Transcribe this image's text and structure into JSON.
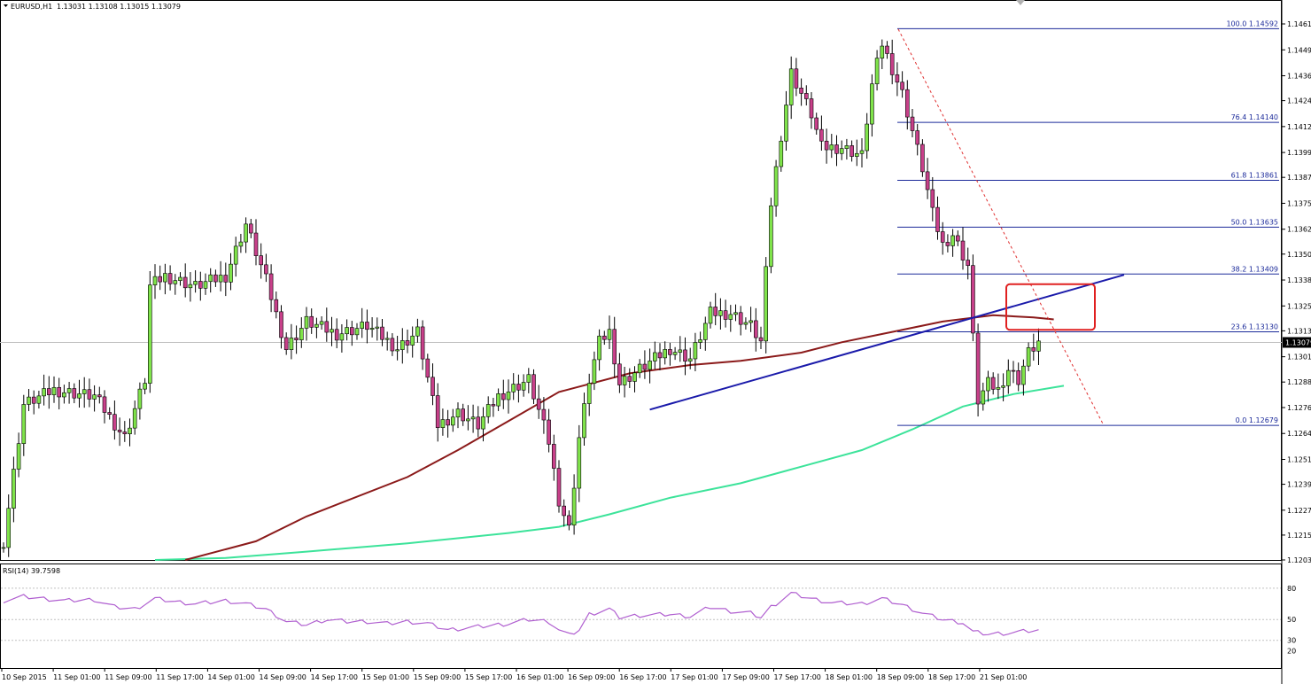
{
  "header": {
    "symbol": "EURUSD,H1",
    "ohlc": "1.13031 1.13108 1.13015 1.13079",
    "rsi_label": "RSI(14) 39.7598"
  },
  "colors": {
    "bull_body": "#7fe34a",
    "bear_body": "#c8408a",
    "wick": "#000000",
    "ma_slow": "#8b1a1a",
    "ma_fast": "#3ce39a",
    "trendline": "#1a1aaa",
    "fib": "#1b2a9a",
    "dashed": "#e03030",
    "highlight": "#e02020",
    "rsi": "#b05fd0",
    "grid_level": "#c0c0c0"
  },
  "chart_data": {
    "type": "candlestick",
    "title": "EURUSD,H1",
    "price_axis": {
      "min": 1.1203,
      "max": 1.14615,
      "ticks": [
        "1.14615",
        "1.14490",
        "1.14365",
        "1.14245",
        "1.14120",
        "1.13995",
        "1.13875",
        "1.13750",
        "1.13625",
        "1.13505",
        "1.13380",
        "1.13255",
        "1.13135",
        "1.13010",
        "1.12888",
        "1.12765",
        "1.12640",
        "1.12515",
        "1.12395",
        "1.12270",
        "1.12150",
        "1.12030"
      ],
      "current": "1.13079"
    },
    "x_labels": [
      "10 Sep 2015",
      "11 Sep 01:00",
      "11 Sep 09:00",
      "11 Sep 17:00",
      "14 Sep 01:00",
      "14 Sep 09:00",
      "14 Sep 17:00",
      "15 Sep 01:00",
      "15 Sep 09:00",
      "15 Sep 17:00",
      "16 Sep 01:00",
      "16 Sep 09:00",
      "16 Sep 17:00",
      "17 Sep 01:00",
      "17 Sep 09:00",
      "17 Sep 17:00",
      "18 Sep 01:00",
      "18 Sep 09:00",
      "18 Sep 17:00",
      "21 Sep 01:00"
    ],
    "fibonacci": [
      {
        "label": "100.0 1.14592",
        "price": 1.14592
      },
      {
        "label": "76.4 1.14140",
        "price": 1.1414
      },
      {
        "label": "61.8 1.13861",
        "price": 1.13861
      },
      {
        "label": "50.0 1.13635",
        "price": 1.13635
      },
      {
        "label": "38.2 1.13409",
        "price": 1.13409
      },
      {
        "label": "23.6 1.13130",
        "price": 1.1313
      },
      {
        "label": "0.0 1.12679",
        "price": 1.12679
      }
    ],
    "close_path": [
      {
        "i": 0,
        "p": 1.1212
      },
      {
        "i": 4,
        "p": 1.1278
      },
      {
        "i": 10,
        "p": 1.1285
      },
      {
        "i": 18,
        "p": 1.1282
      },
      {
        "i": 24,
        "p": 1.1262
      },
      {
        "i": 28,
        "p": 1.129
      },
      {
        "i": 29,
        "p": 1.1335
      },
      {
        "i": 32,
        "p": 1.134
      },
      {
        "i": 38,
        "p": 1.1335
      },
      {
        "i": 44,
        "p": 1.134
      },
      {
        "i": 48,
        "p": 1.1365
      },
      {
        "i": 52,
        "p": 1.1338
      },
      {
        "i": 56,
        "p": 1.1305
      },
      {
        "i": 60,
        "p": 1.1318
      },
      {
        "i": 66,
        "p": 1.1312
      },
      {
        "i": 72,
        "p": 1.1316
      },
      {
        "i": 78,
        "p": 1.1305
      },
      {
        "i": 82,
        "p": 1.1313
      },
      {
        "i": 86,
        "p": 1.1268
      },
      {
        "i": 90,
        "p": 1.1274
      },
      {
        "i": 94,
        "p": 1.1268
      },
      {
        "i": 98,
        "p": 1.1282
      },
      {
        "i": 104,
        "p": 1.129
      },
      {
        "i": 106,
        "p": 1.1275
      },
      {
        "i": 108,
        "p": 1.126
      },
      {
        "i": 110,
        "p": 1.1232
      },
      {
        "i": 112,
        "p": 1.1218
      },
      {
        "i": 114,
        "p": 1.1262
      },
      {
        "i": 116,
        "p": 1.129
      },
      {
        "i": 118,
        "p": 1.1308
      },
      {
        "i": 120,
        "p": 1.1313
      },
      {
        "i": 122,
        "p": 1.1288
      },
      {
        "i": 126,
        "p": 1.1295
      },
      {
        "i": 132,
        "p": 1.1305
      },
      {
        "i": 136,
        "p": 1.13
      },
      {
        "i": 140,
        "p": 1.1322
      },
      {
        "i": 144,
        "p": 1.1322
      },
      {
        "i": 148,
        "p": 1.1316
      },
      {
        "i": 150,
        "p": 1.1308
      },
      {
        "i": 152,
        "p": 1.1375
      },
      {
        "i": 154,
        "p": 1.1408
      },
      {
        "i": 156,
        "p": 1.1438
      },
      {
        "i": 158,
        "p": 1.1428
      },
      {
        "i": 160,
        "p": 1.1418
      },
      {
        "i": 162,
        "p": 1.1402
      },
      {
        "i": 166,
        "p": 1.1402
      },
      {
        "i": 170,
        "p": 1.1398
      },
      {
        "i": 172,
        "p": 1.1432
      },
      {
        "i": 174,
        "p": 1.1452
      },
      {
        "i": 176,
        "p": 1.144
      },
      {
        "i": 178,
        "p": 1.1428
      },
      {
        "i": 180,
        "p": 1.141
      },
      {
        "i": 182,
        "p": 1.1392
      },
      {
        "i": 184,
        "p": 1.137
      },
      {
        "i": 186,
        "p": 1.1355
      },
      {
        "i": 188,
        "p": 1.136
      },
      {
        "i": 190,
        "p": 1.135
      },
      {
        "i": 191,
        "p": 1.1345
      },
      {
        "i": 192,
        "p": 1.131
      },
      {
        "i": 193,
        "p": 1.128
      },
      {
        "i": 195,
        "p": 1.1288
      },
      {
        "i": 197,
        "p": 1.1285
      },
      {
        "i": 199,
        "p": 1.1295
      },
      {
        "i": 201,
        "p": 1.129
      },
      {
        "i": 203,
        "p": 1.1303
      },
      {
        "i": 205,
        "p": 1.1308
      }
    ],
    "ma_slow": [
      {
        "i": 36,
        "p": 1.1203
      },
      {
        "i": 50,
        "p": 1.1212
      },
      {
        "i": 60,
        "p": 1.1224
      },
      {
        "i": 80,
        "p": 1.1243
      },
      {
        "i": 90,
        "p": 1.1256
      },
      {
        "i": 100,
        "p": 1.127
      },
      {
        "i": 110,
        "p": 1.1284
      },
      {
        "i": 124,
        "p": 1.1293
      },
      {
        "i": 136,
        "p": 1.1297
      },
      {
        "i": 146,
        "p": 1.1299
      },
      {
        "i": 158,
        "p": 1.1303
      },
      {
        "i": 166,
        "p": 1.1308
      },
      {
        "i": 176,
        "p": 1.1313
      },
      {
        "i": 186,
        "p": 1.1318
      },
      {
        "i": 196,
        "p": 1.1321
      },
      {
        "i": 204,
        "p": 1.132
      },
      {
        "i": 208,
        "p": 1.1319
      }
    ],
    "ma_fast": [
      {
        "i": 30,
        "p": 1.1203
      },
      {
        "i": 44,
        "p": 1.1204
      },
      {
        "i": 60,
        "p": 1.1207
      },
      {
        "i": 80,
        "p": 1.1211
      },
      {
        "i": 100,
        "p": 1.1216
      },
      {
        "i": 110,
        "p": 1.1219
      },
      {
        "i": 120,
        "p": 1.1225
      },
      {
        "i": 132,
        "p": 1.1233
      },
      {
        "i": 146,
        "p": 1.124
      },
      {
        "i": 158,
        "p": 1.1248
      },
      {
        "i": 170,
        "p": 1.1256
      },
      {
        "i": 180,
        "p": 1.1266
      },
      {
        "i": 190,
        "p": 1.1277
      },
      {
        "i": 200,
        "p": 1.1283
      },
      {
        "i": 210,
        "p": 1.1287
      }
    ],
    "rsi": {
      "label": "RSI(14) 39.7598",
      "value": 39.7598,
      "levels": [
        "80",
        "50",
        "30",
        "20"
      ],
      "path": [
        {
          "i": 0,
          "v": 68
        },
        {
          "i": 4,
          "v": 72
        },
        {
          "i": 8,
          "v": 70
        },
        {
          "i": 12,
          "v": 68
        },
        {
          "i": 18,
          "v": 69
        },
        {
          "i": 22,
          "v": 62
        },
        {
          "i": 26,
          "v": 60
        },
        {
          "i": 30,
          "v": 70
        },
        {
          "i": 34,
          "v": 67
        },
        {
          "i": 38,
          "v": 65
        },
        {
          "i": 44,
          "v": 68
        },
        {
          "i": 48,
          "v": 65
        },
        {
          "i": 52,
          "v": 60
        },
        {
          "i": 56,
          "v": 48
        },
        {
          "i": 60,
          "v": 45
        },
        {
          "i": 64,
          "v": 50
        },
        {
          "i": 68,
          "v": 48
        },
        {
          "i": 72,
          "v": 48
        },
        {
          "i": 76,
          "v": 46
        },
        {
          "i": 80,
          "v": 48
        },
        {
          "i": 84,
          "v": 46
        },
        {
          "i": 88,
          "v": 40
        },
        {
          "i": 92,
          "v": 42
        },
        {
          "i": 96,
          "v": 44
        },
        {
          "i": 100,
          "v": 46
        },
        {
          "i": 104,
          "v": 50
        },
        {
          "i": 108,
          "v": 48
        },
        {
          "i": 110,
          "v": 40
        },
        {
          "i": 112,
          "v": 35
        },
        {
          "i": 114,
          "v": 40
        },
        {
          "i": 116,
          "v": 55
        },
        {
          "i": 120,
          "v": 60
        },
        {
          "i": 122,
          "v": 52
        },
        {
          "i": 126,
          "v": 54
        },
        {
          "i": 132,
          "v": 55
        },
        {
          "i": 136,
          "v": 53
        },
        {
          "i": 140,
          "v": 62
        },
        {
          "i": 144,
          "v": 58
        },
        {
          "i": 148,
          "v": 56
        },
        {
          "i": 150,
          "v": 52
        },
        {
          "i": 152,
          "v": 62
        },
        {
          "i": 156,
          "v": 75
        },
        {
          "i": 160,
          "v": 70
        },
        {
          "i": 164,
          "v": 66
        },
        {
          "i": 170,
          "v": 65
        },
        {
          "i": 174,
          "v": 70
        },
        {
          "i": 178,
          "v": 64
        },
        {
          "i": 182,
          "v": 56
        },
        {
          "i": 186,
          "v": 50
        },
        {
          "i": 190,
          "v": 47
        },
        {
          "i": 192,
          "v": 38
        },
        {
          "i": 195,
          "v": 36
        },
        {
          "i": 199,
          "v": 37
        },
        {
          "i": 203,
          "v": 39
        },
        {
          "i": 205,
          "v": 39.76
        }
      ]
    }
  }
}
